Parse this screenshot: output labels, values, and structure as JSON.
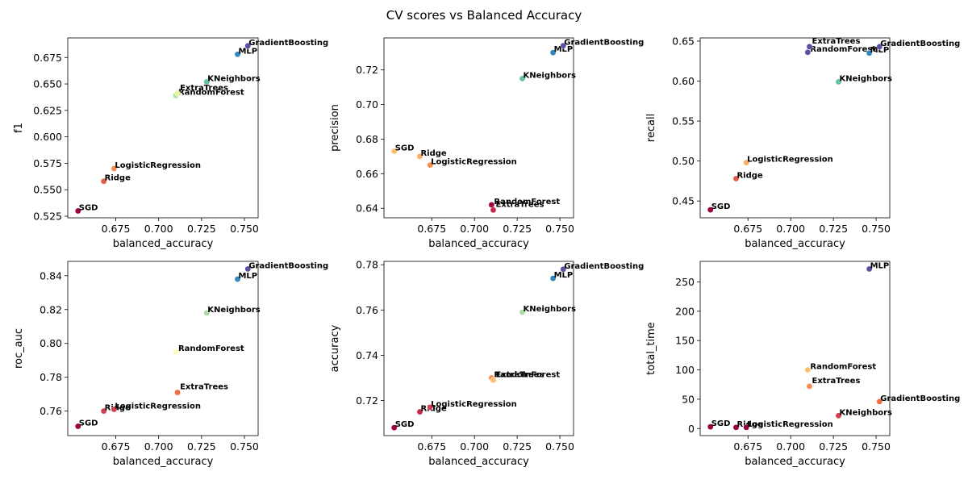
{
  "figure": {
    "title": "CV scores vs Balanced Accuracy"
  },
  "chart_data": [
    {
      "type": "scatter",
      "title": "",
      "xlabel": "balanced_accuracy",
      "ylabel": "f1",
      "xlim": [
        0.647,
        0.758
      ],
      "ylim": [
        0.5235,
        0.6935
      ],
      "xticks": [
        "0.675",
        "0.700",
        "0.725",
        "0.750"
      ],
      "yticks": [
        "0.525",
        "0.550",
        "0.575",
        "0.600",
        "0.625",
        "0.650",
        "0.675"
      ],
      "points": [
        {
          "label": "SGD",
          "x": 0.653,
          "y": 0.53,
          "color": "#9e0142"
        },
        {
          "label": "Ridge",
          "x": 0.668,
          "y": 0.558,
          "color": "#e55b48"
        },
        {
          "label": "LogisticRegression",
          "x": 0.674,
          "y": 0.57,
          "color": "#f88d52"
        },
        {
          "label": "RandomForest",
          "x": 0.71,
          "y": 0.639,
          "color": "#abdda4"
        },
        {
          "label": "ExtraTrees",
          "x": 0.711,
          "y": 0.641,
          "color": "#e6f598"
        },
        {
          "label": "KNeighbors",
          "x": 0.728,
          "y": 0.652,
          "color": "#66c2a5"
        },
        {
          "label": "MLP",
          "x": 0.746,
          "y": 0.678,
          "color": "#3288bd"
        },
        {
          "label": "GradientBoosting",
          "x": 0.752,
          "y": 0.686,
          "color": "#5e4fa2"
        }
      ]
    },
    {
      "type": "scatter",
      "title": "",
      "xlabel": "balanced_accuracy",
      "ylabel": "precision",
      "xlim": [
        0.647,
        0.758
      ],
      "ylim": [
        0.6345,
        0.7385
      ],
      "xticks": [
        "0.675",
        "0.700",
        "0.725",
        "0.750"
      ],
      "yticks": [
        "0.64",
        "0.66",
        "0.68",
        "0.70",
        "0.72"
      ],
      "points": [
        {
          "label": "SGD",
          "x": 0.653,
          "y": 0.673,
          "color": "#fdbf6f"
        },
        {
          "label": "Ridge",
          "x": 0.668,
          "y": 0.67,
          "color": "#fdae61"
        },
        {
          "label": "LogisticRegression",
          "x": 0.674,
          "y": 0.665,
          "color": "#f88d52"
        },
        {
          "label": "RandomForest",
          "x": 0.71,
          "y": 0.642,
          "color": "#9e0142"
        },
        {
          "label": "ExtraTrees",
          "x": 0.711,
          "y": 0.639,
          "color": "#c2294a"
        },
        {
          "label": "KNeighbors",
          "x": 0.728,
          "y": 0.715,
          "color": "#66c2a5"
        },
        {
          "label": "MLP",
          "x": 0.746,
          "y": 0.73,
          "color": "#3288bd"
        },
        {
          "label": "GradientBoosting",
          "x": 0.752,
          "y": 0.734,
          "color": "#5e4fa2"
        }
      ]
    },
    {
      "type": "scatter",
      "title": "",
      "xlabel": "balanced_accuracy",
      "ylabel": "recall",
      "xlim": [
        0.647,
        0.758
      ],
      "ylim": [
        0.429,
        0.654
      ],
      "xticks": [
        "0.675",
        "0.700",
        "0.725",
        "0.750"
      ],
      "yticks": [
        "0.45",
        "0.50",
        "0.55",
        "0.60",
        "0.65"
      ],
      "points": [
        {
          "label": "SGD",
          "x": 0.653,
          "y": 0.439,
          "color": "#9e0142"
        },
        {
          "label": "Ridge",
          "x": 0.668,
          "y": 0.478,
          "color": "#e55b48"
        },
        {
          "label": "LogisticRegression",
          "x": 0.674,
          "y": 0.498,
          "color": "#fdae61"
        },
        {
          "label": "RandomForest",
          "x": 0.71,
          "y": 0.636,
          "color": "#5e4fa2"
        },
        {
          "label": "ExtraTrees",
          "x": 0.711,
          "y": 0.643,
          "color": "#5e4fa2"
        },
        {
          "label": "KNeighbors",
          "x": 0.728,
          "y": 0.599,
          "color": "#66c2a5"
        },
        {
          "label": "MLP",
          "x": 0.746,
          "y": 0.635,
          "color": "#3288bd"
        },
        {
          "label": "GradientBoosting",
          "x": 0.752,
          "y": 0.643,
          "color": "#5e4fa2"
        }
      ]
    },
    {
      "type": "scatter",
      "title": "",
      "xlabel": "balanced_accuracy",
      "ylabel": "roc_auc",
      "xlim": [
        0.647,
        0.758
      ],
      "ylim": [
        0.7455,
        0.8485
      ],
      "xticks": [
        "0.675",
        "0.700",
        "0.725",
        "0.750"
      ],
      "yticks": [
        "0.76",
        "0.78",
        "0.80",
        "0.82",
        "0.84"
      ],
      "points": [
        {
          "label": "SGD",
          "x": 0.653,
          "y": 0.751,
          "color": "#9e0142"
        },
        {
          "label": "Ridge",
          "x": 0.668,
          "y": 0.76,
          "color": "#d53e4f"
        },
        {
          "label": "LogisticRegression",
          "x": 0.674,
          "y": 0.761,
          "color": "#d53e4f"
        },
        {
          "label": "RandomForest",
          "x": 0.71,
          "y": 0.795,
          "color": "#ffffbf"
        },
        {
          "label": "ExtraTrees",
          "x": 0.711,
          "y": 0.771,
          "color": "#f46d43"
        },
        {
          "label": "KNeighbors",
          "x": 0.728,
          "y": 0.818,
          "color": "#abdda4"
        },
        {
          "label": "MLP",
          "x": 0.746,
          "y": 0.838,
          "color": "#3288bd"
        },
        {
          "label": "GradientBoosting",
          "x": 0.752,
          "y": 0.844,
          "color": "#5e4fa2"
        }
      ]
    },
    {
      "type": "scatter",
      "title": "",
      "xlabel": "balanced_accuracy",
      "ylabel": "accuracy",
      "xlim": [
        0.647,
        0.758
      ],
      "ylim": [
        0.7045,
        0.7815
      ],
      "xticks": [
        "0.675",
        "0.700",
        "0.725",
        "0.750"
      ],
      "yticks": [
        "0.72",
        "0.74",
        "0.76",
        "0.78"
      ],
      "points": [
        {
          "label": "SGD",
          "x": 0.653,
          "y": 0.708,
          "color": "#9e0142"
        },
        {
          "label": "Ridge",
          "x": 0.668,
          "y": 0.715,
          "color": "#c2294a"
        },
        {
          "label": "LogisticRegression",
          "x": 0.674,
          "y": 0.717,
          "color": "#d53e4f"
        },
        {
          "label": "RandomForest",
          "x": 0.71,
          "y": 0.73,
          "color": "#f88d52"
        },
        {
          "label": "ExtraTrees",
          "x": 0.711,
          "y": 0.729,
          "color": "#fdbf6f"
        },
        {
          "label": "KNeighbors",
          "x": 0.728,
          "y": 0.759,
          "color": "#abdda4"
        },
        {
          "label": "MLP",
          "x": 0.746,
          "y": 0.774,
          "color": "#3288bd"
        },
        {
          "label": "GradientBoosting",
          "x": 0.752,
          "y": 0.778,
          "color": "#5e4fa2"
        }
      ]
    },
    {
      "type": "scatter",
      "title": "",
      "xlabel": "balanced_accuracy",
      "ylabel": "total_time",
      "xlim": [
        0.647,
        0.758
      ],
      "ylim": [
        -12,
        285
      ],
      "xticks": [
        "0.675",
        "0.700",
        "0.725",
        "0.750"
      ],
      "yticks": [
        "0",
        "50",
        "100",
        "150",
        "200",
        "250"
      ],
      "points": [
        {
          "label": "SGD",
          "x": 0.653,
          "y": 3,
          "color": "#9e0142"
        },
        {
          "label": "Ridge",
          "x": 0.668,
          "y": 2,
          "color": "#9e0142"
        },
        {
          "label": "LogisticRegression",
          "x": 0.674,
          "y": 2,
          "color": "#9e0142"
        },
        {
          "label": "RandomForest",
          "x": 0.71,
          "y": 100,
          "color": "#fdbf6f"
        },
        {
          "label": "ExtraTrees",
          "x": 0.711,
          "y": 72,
          "color": "#f88d52"
        },
        {
          "label": "KNeighbors",
          "x": 0.728,
          "y": 22,
          "color": "#d53e4f"
        },
        {
          "label": "MLP",
          "x": 0.746,
          "y": 272,
          "color": "#5e4fa2"
        },
        {
          "label": "GradientBoosting",
          "x": 0.752,
          "y": 46,
          "color": "#f46d43"
        }
      ]
    }
  ]
}
